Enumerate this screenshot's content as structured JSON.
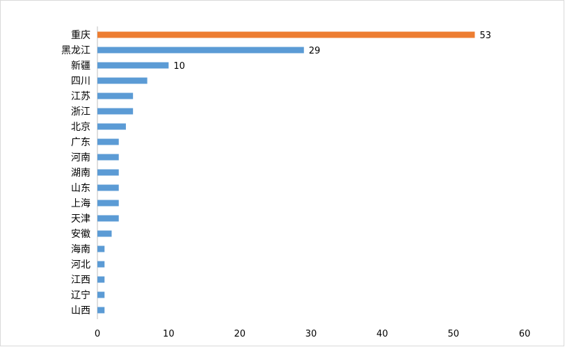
{
  "chart_data": {
    "type": "bar",
    "orientation": "horizontal",
    "categories": [
      "重庆",
      "黑龙江",
      "新疆",
      "四川",
      "江苏",
      "浙江",
      "北京",
      "广东",
      "河南",
      "湖南",
      "山东",
      "上海",
      "天津",
      "安徽",
      "海南",
      "河北",
      "江西",
      "辽宁",
      "山西"
    ],
    "values": [
      53,
      29,
      10,
      7,
      5,
      5,
      4,
      3,
      3,
      3,
      3,
      3,
      3,
      2,
      1,
      1,
      1,
      1,
      1
    ],
    "data_labels": {
      "0": "53",
      "1": "29",
      "2": "10"
    },
    "xlim": [
      0,
      60
    ],
    "xticks": [
      "0",
      "10",
      "20",
      "30",
      "40",
      "50",
      "60"
    ],
    "title": "",
    "xlabel": "",
    "ylabel": "",
    "grid": false,
    "legend": "none",
    "colors": {
      "highlight": "#ed7d31",
      "default": "#5b9bd5"
    },
    "highlight_index": 0
  }
}
